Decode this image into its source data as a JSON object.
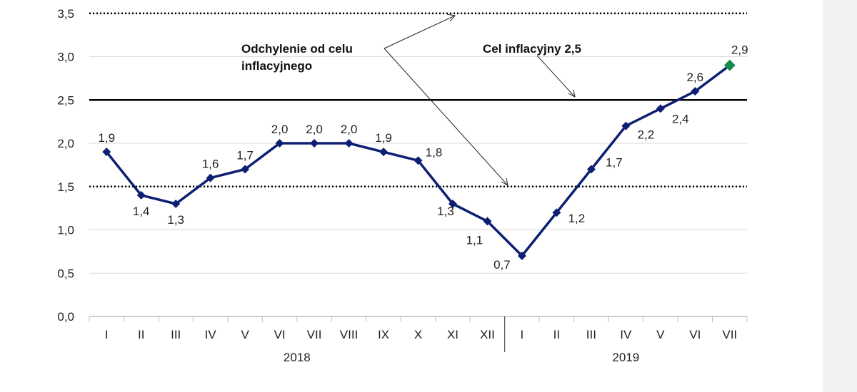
{
  "chart_data": {
    "type": "line",
    "title": "",
    "xlabel": "",
    "ylabel": "",
    "ylim": [
      0,
      3.5
    ],
    "yticks": [
      "0,0",
      "0,5",
      "1,0",
      "1,5",
      "2,0",
      "2,5",
      "3,0",
      "3,5"
    ],
    "ytick_values": [
      0,
      0.5,
      1.0,
      1.5,
      2.0,
      2.5,
      3.0,
      3.5
    ],
    "categories": [
      "I",
      "II",
      "III",
      "IV",
      "V",
      "VI",
      "VII",
      "VIII",
      "IX",
      "X",
      "XI",
      "XII",
      "I",
      "II",
      "III",
      "IV",
      "V",
      "VI",
      "VII"
    ],
    "year_groups": [
      {
        "label": "2018",
        "from": 0,
        "to": 11
      },
      {
        "label": "2019",
        "from": 12,
        "to": 18
      }
    ],
    "series": [
      {
        "values": [
          1.9,
          1.4,
          1.3,
          1.6,
          1.7,
          2.0,
          2.0,
          2.0,
          1.9,
          1.8,
          1.3,
          1.1,
          0.7,
          1.2,
          1.7,
          2.2,
          2.4,
          2.6,
          2.9
        ],
        "labels": [
          "1,9",
          "1,4",
          "1,3",
          "1,6",
          "1,7",
          "2,0",
          "2,0",
          "2,0",
          "1,9",
          "1,8",
          "1,3",
          "1,1",
          "0,7",
          "1,2",
          "1,7",
          "2,2",
          "2,4",
          "2,6",
          "2,9"
        ],
        "color": "#0d1f73",
        "last_point_color": "#1a8a4a"
      }
    ],
    "reference_lines": [
      {
        "value": 2.5,
        "style": "solid"
      },
      {
        "value": 3.5,
        "style": "dotted"
      },
      {
        "value": 1.5,
        "style": "dotted"
      }
    ],
    "annotations": {
      "deviation": [
        "Odchylenie od celu",
        "inflacyjnego"
      ],
      "target": "Cel inflacyjny 2,5"
    },
    "grid": true
  }
}
